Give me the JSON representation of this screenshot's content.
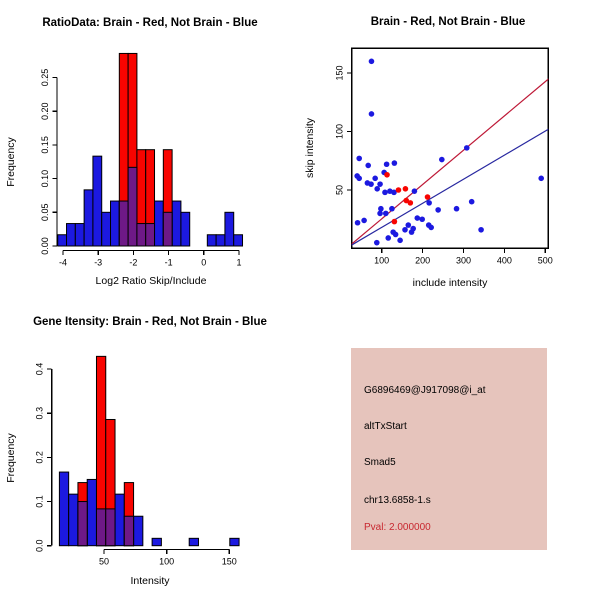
{
  "colors": {
    "blue": "#1C19E0",
    "red": "#F80400",
    "purple": "#6E1987",
    "red_line": "#BE1937",
    "blue_line": "#2828A0",
    "panel_bg": "#E6C4BC",
    "pval_red": "#C82830",
    "axis": "#000000",
    "background": "#FFFFFF"
  },
  "chart_data": [
    {
      "id": "ratio_hist",
      "type": "histogram-overlay",
      "title": "RatioData: Brain - Red, Not Brain - Blue",
      "xlabel": "Log2 Ratio Skip/Include",
      "ylabel": "Frequency",
      "xlim": [
        -4.3,
        1.2
      ],
      "ylim": [
        0,
        0.29
      ],
      "grid": false,
      "xticks": [
        -4,
        -3,
        -2,
        -1,
        0,
        1
      ],
      "xtick_labels": [
        "-4",
        "-3",
        "-2",
        "-1",
        "0",
        "1"
      ],
      "yticks": [
        0,
        0.05,
        0.1,
        0.15,
        0.2,
        0.25
      ],
      "ytick_labels": [
        "0.00",
        "0.05",
        "0.10",
        "0.15",
        "0.20",
        "0.25"
      ],
      "series": [
        {
          "name": "Not Brain",
          "color_key": "blue",
          "bars": [
            [
              -4.15,
              -3.9,
              0.0167
            ],
            [
              -3.9,
              -3.65,
              0.0333
            ],
            [
              -3.65,
              -3.4,
              0.0333
            ],
            [
              -3.4,
              -3.15,
              0.0833
            ],
            [
              -3.15,
              -2.9,
              0.1333
            ],
            [
              -2.9,
              -2.65,
              0.05
            ],
            [
              -2.65,
              -2.4,
              0.0667
            ],
            [
              -2.4,
              -2.15,
              0.0667
            ],
            [
              -2.15,
              -1.9,
              0.1167
            ],
            [
              -1.9,
              -1.65,
              0.0333
            ],
            [
              -1.65,
              -1.4,
              0.0333
            ],
            [
              -1.4,
              -1.15,
              0.0667
            ],
            [
              -1.15,
              -0.9,
              0.05
            ],
            [
              -0.9,
              -0.65,
              0.0667
            ],
            [
              -0.65,
              -0.4,
              0.05
            ],
            [
              0.1,
              0.35,
              0.0167
            ],
            [
              0.35,
              0.6,
              0.0167
            ],
            [
              0.6,
              0.85,
              0.05
            ],
            [
              0.85,
              1.1,
              0.0167
            ]
          ]
        },
        {
          "name": "Brain",
          "color_key": "red",
          "bars": [
            [
              -2.4,
              -2.15,
              0.2857
            ],
            [
              -2.15,
              -1.9,
              0.2857
            ],
            [
              -1.9,
              -1.65,
              0.1429
            ],
            [
              -1.65,
              -1.4,
              0.1429
            ],
            [
              -1.15,
              -0.9,
              0.1429
            ]
          ]
        }
      ]
    },
    {
      "id": "intensity_scatter",
      "type": "scatter",
      "title": "Brain - Red, Not Brain - Blue",
      "xlabel": "include intensity",
      "ylabel": "skip intensity",
      "xlim": [
        17,
        508
      ],
      "ylim": [
        0,
        171
      ],
      "grid": false,
      "xticks": [
        100,
        200,
        300,
        400,
        500
      ],
      "xtick_labels": [
        "100",
        "200",
        "300",
        "400",
        "500"
      ],
      "yticks": [
        50,
        100,
        150
      ],
      "ytick_labels": [
        "50",
        "100",
        "150"
      ],
      "series": [
        {
          "name": "Not Brain",
          "color_key": "blue",
          "points": [
            [
              75,
              160
            ],
            [
              75,
              115
            ],
            [
              45,
              77
            ],
            [
              67,
              71
            ],
            [
              40,
              62
            ],
            [
              45,
              60
            ],
            [
              84,
              60
            ],
            [
              74,
              55
            ],
            [
              65,
              56
            ],
            [
              106,
              65
            ],
            [
              112,
              72
            ],
            [
              131,
              73
            ],
            [
              96,
              55
            ],
            [
              89,
              51
            ],
            [
              108,
              48
            ],
            [
              120,
              49
            ],
            [
              130,
              48
            ],
            [
              41,
              22
            ],
            [
              57,
              24
            ],
            [
              96,
              30
            ],
            [
              98,
              34
            ],
            [
              110,
              30
            ],
            [
              88,
              5
            ],
            [
              116,
              9
            ],
            [
              128,
              14
            ],
            [
              134,
              12
            ],
            [
              145,
              7
            ],
            [
              157,
              16
            ],
            [
              165,
              20
            ],
            [
              173,
              14
            ],
            [
              177,
              17
            ],
            [
              187,
              26
            ],
            [
              199,
              25
            ],
            [
              215,
              20
            ],
            [
              221,
              18
            ],
            [
              125,
              34
            ],
            [
              180,
              49
            ],
            [
              247,
              76
            ],
            [
              308,
              86
            ],
            [
              490,
              60
            ],
            [
              283,
              34
            ],
            [
              238,
              33
            ],
            [
              343,
              16
            ],
            [
              320,
              40
            ],
            [
              216,
              39
            ]
          ]
        },
        {
          "name": "Brain",
          "color_key": "red",
          "points": [
            [
              113,
              63
            ],
            [
              141,
              50
            ],
            [
              158,
              51
            ],
            [
              160,
              41
            ],
            [
              170,
              39
            ],
            [
              131,
              23
            ],
            [
              212,
              44
            ]
          ]
        }
      ],
      "lines": [
        {
          "name": "brain-fit",
          "color_key": "red_line",
          "from": [
            17,
            1
          ],
          "to": [
            508,
            145
          ]
        },
        {
          "name": "notbrain-fit",
          "color_key": "blue_line",
          "from": [
            17,
            1
          ],
          "to": [
            508,
            102
          ]
        }
      ]
    },
    {
      "id": "gene_intensity_hist",
      "type": "histogram-overlay",
      "title": "Gene Itensity: Brain - Red, Not Brain - Blue",
      "xlabel": "Intensity",
      "ylabel": "Frequency",
      "xlim": [
        10,
        162
      ],
      "ylim": [
        0,
        0.43
      ],
      "grid": false,
      "xticks": [
        50,
        100,
        150
      ],
      "xtick_labels": [
        "50",
        "100",
        "150"
      ],
      "yticks": [
        0,
        0.1,
        0.2,
        0.3,
        0.4
      ],
      "ytick_labels": [
        "0.0",
        "0.1",
        "0.2",
        "0.3",
        "0.4"
      ],
      "series": [
        {
          "name": "Not Brain",
          "color_key": "blue",
          "bars": [
            [
              14.4,
              21.8,
              0.1667
            ],
            [
              21.8,
              29.2,
              0.1167
            ],
            [
              29.2,
              36.6,
              0.1
            ],
            [
              36.6,
              44.0,
              0.15
            ],
            [
              44.0,
              51.4,
              0.0833
            ],
            [
              51.4,
              58.8,
              0.0833
            ],
            [
              58.8,
              66.2,
              0.1167
            ],
            [
              66.2,
              73.6,
              0.0667
            ],
            [
              73.6,
              81.0,
              0.0667
            ],
            [
              88.4,
              95.8,
              0.0167
            ],
            [
              118.0,
              125.4,
              0.0167
            ],
            [
              150.4,
              157.8,
              0.0167
            ]
          ]
        },
        {
          "name": "Brain",
          "color_key": "red",
          "bars": [
            [
              29.2,
              36.6,
              0.1429
            ],
            [
              44.0,
              51.4,
              0.4286
            ],
            [
              51.4,
              58.8,
              0.2857
            ],
            [
              66.2,
              73.6,
              0.1429
            ]
          ]
        }
      ]
    }
  ],
  "info_panel": {
    "probe": "G6896469@J917098@i_at",
    "event_type": "altTxStart",
    "gene": "Smad5",
    "location": "chr13.6858-1.s",
    "pval": "Pval: 2.000000"
  }
}
